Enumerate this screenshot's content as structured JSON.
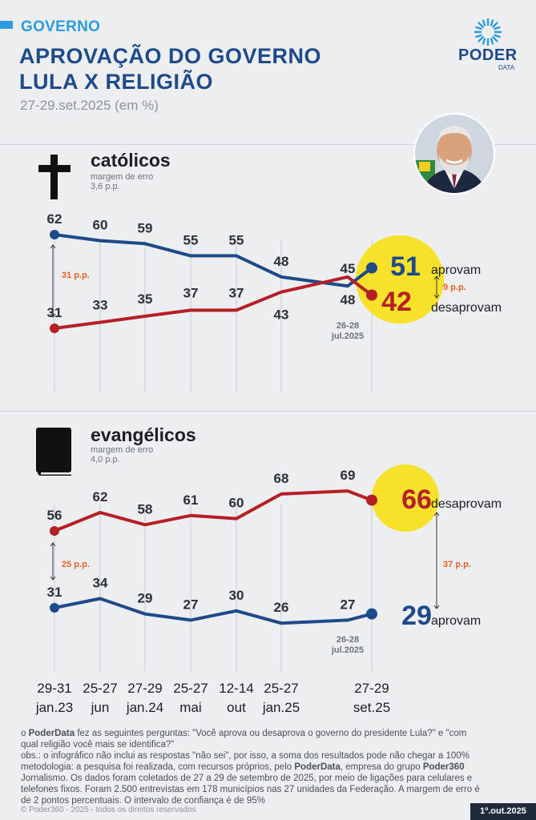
{
  "header": {
    "kicker": "GOVERNO",
    "title_line1": "APROVAÇÃO DO GOVERNO",
    "title_line2": "LULA X RELIGIÃO",
    "subtitle": "27-29.set.2025 (em %)"
  },
  "logo": {
    "name": "PODER",
    "sub": "DATA"
  },
  "colors": {
    "approve": "#1f4a8a",
    "disapprove": "#b52025",
    "highlight": "#f7e12a",
    "margin": "#e8612a"
  },
  "icons": {
    "catolicos": "cross-icon",
    "evangelicos": "bible-icon",
    "portrait": "president-portrait"
  },
  "x_axis": {
    "ticks": [
      {
        "top": "29-31",
        "bottom": "jan.23"
      },
      {
        "top": "25-27",
        "bottom": "jun"
      },
      {
        "top": "27-29",
        "bottom": "jan.24"
      },
      {
        "top": "25-27",
        "bottom": "mai"
      },
      {
        "top": "12-14",
        "bottom": "out"
      },
      {
        "top": "25-27",
        "bottom": "jan.25"
      },
      {
        "top": "27-29",
        "bottom": "set.25"
      }
    ]
  },
  "panels": {
    "catolicos": {
      "title": "católicos",
      "moe_label": "margem de erro",
      "moe_value": "3,6 p.p.",
      "gap_start": "31 p.p.",
      "gap_end": "9 p.p.",
      "note": "26-28\njul.2025",
      "approve_label": "aprovam",
      "disapprove_label": "desaprovam"
    },
    "evangelicos": {
      "title": "evangélicos",
      "moe_label": "margem de erro",
      "moe_value": "4,0 p.p.",
      "gap_start": "25 p.p.",
      "gap_end": "37 p.p.",
      "note": "26-28\njul.2025",
      "approve_label": "aprovam",
      "disapprove_label": "desaprovam"
    }
  },
  "chart_data": [
    {
      "type": "line",
      "title": "católicos",
      "x": [
        "29-31 jan.23",
        "25-27 jun",
        "27-29 jan.24",
        "25-27 mai",
        "12-14 out",
        "25-27 jan.25",
        "26-28 jul.2025",
        "27-29 set.25"
      ],
      "series": [
        {
          "name": "aprovam",
          "values": [
            62,
            60,
            59,
            55,
            55,
            48,
            45,
            51
          ]
        },
        {
          "name": "desaprovam",
          "values": [
            31,
            33,
            35,
            37,
            37,
            43,
            48,
            42
          ]
        }
      ],
      "ylim": [
        25,
        70
      ]
    },
    {
      "type": "line",
      "title": "evangélicos",
      "x": [
        "29-31 jan.23",
        "25-27 jun",
        "27-29 jan.24",
        "25-27 mai",
        "12-14 out",
        "25-27 jan.25",
        "26-28 jul.2025",
        "27-29 set.25"
      ],
      "series": [
        {
          "name": "desaprovam",
          "values": [
            56,
            62,
            58,
            61,
            60,
            68,
            69,
            66
          ]
        },
        {
          "name": "aprovam",
          "values": [
            31,
            34,
            29,
            27,
            30,
            26,
            27,
            29
          ]
        }
      ],
      "ylim": [
        20,
        75
      ]
    }
  ],
  "footer": {
    "line1_prefix": "o ",
    "line1_brand": "PoderData",
    "line1_rest": " fez as seguintes perguntas: \"Você aprova ou desaprova o governo do presidente Lula?\" e \"com",
    "line2": "qual religião você mais se identifica?\"",
    "line3": "obs.: o infográfico não inclui as respostas \"não sei\", por isso, a soma dos resultados pode não chegar a 100%",
    "line4_prefix": "metodologia: a pesquisa foi realizada, com recursos próprios, pelo ",
    "line4_brand": "PoderData",
    "line4_mid": ", empresa do grupo ",
    "line4_brand2": "Poder360",
    "line5": "Jornalismo. Os dados foram coletados de 27 a 29 de setembro de 2025, por meio de ligações para celulares e",
    "line6": "telefones fixos. Foram 2.500 entrevistas em 178 municípios nas 27 unidades da Federação. A margem de erro é",
    "line7": "de 2 pontos percentuais. O intervalo de confiança é de 95%",
    "copyright": "© Poder360 - 2025 - todos os direitos reservados",
    "date": "1º.out.2025"
  }
}
